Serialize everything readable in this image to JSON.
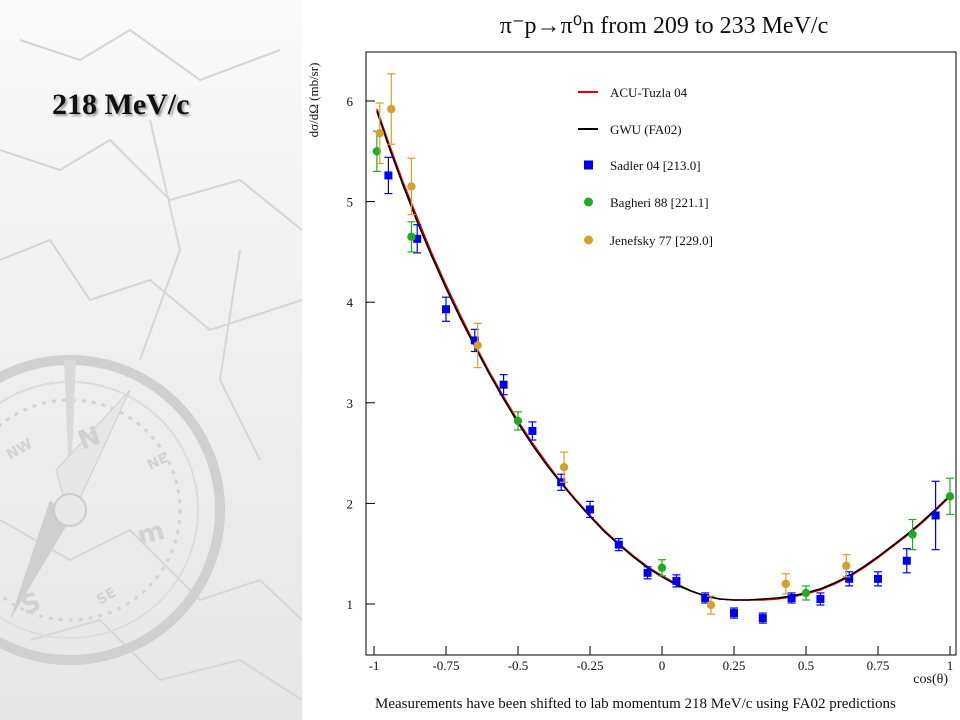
{
  "slide": {
    "title": "218 MeV/c",
    "footnote": "Measurements have been shifted to lab momentum 218 MeV/c using FA02 predictions"
  },
  "decor": {
    "icons": [
      "compass-rose-icon"
    ],
    "compass_letters": [
      "N",
      "NE",
      "NW",
      "S",
      "SE",
      "m"
    ]
  },
  "chart_data": {
    "type": "scatter",
    "title": "π⁻p→π⁰n from 209 to 233 MeV/c",
    "xlabel": "cos(θ)",
    "ylabel": "dσ/dΩ (mb/sr)",
    "xlim": [
      -1,
      1
    ],
    "ylim": [
      0.6,
      6.5
    ],
    "xticks": [
      -1,
      -0.75,
      -0.5,
      -0.25,
      0,
      0.25,
      0.5,
      0.75,
      1
    ],
    "xtick_labels": [
      "-1",
      "-0.75",
      "-0.5",
      "-0.25",
      "0",
      "0.25",
      "0.5",
      "0.75",
      "1"
    ],
    "yticks": [
      1,
      2,
      3,
      4,
      5,
      6
    ],
    "ytick_labels": [
      "1",
      "2",
      "3",
      "4",
      "5",
      "6"
    ],
    "grid": false,
    "legend": "top-right",
    "curves": [
      {
        "name": "ACU-Tuzla 04",
        "color": "#e00000",
        "x": [
          -0.99,
          -0.95,
          -0.9,
          -0.85,
          -0.8,
          -0.75,
          -0.7,
          -0.65,
          -0.6,
          -0.55,
          -0.5,
          -0.45,
          -0.4,
          -0.35,
          -0.3,
          -0.25,
          -0.2,
          -0.15,
          -0.1,
          -0.05,
          0,
          0.05,
          0.1,
          0.15,
          0.2,
          0.25,
          0.3,
          0.35,
          0.4,
          0.45,
          0.5,
          0.55,
          0.6,
          0.65,
          0.7,
          0.75,
          0.8,
          0.85,
          0.9,
          0.95,
          1.0
        ],
        "y": [
          5.92,
          5.59,
          5.2,
          4.84,
          4.49,
          4.17,
          3.87,
          3.58,
          3.31,
          3.06,
          2.82,
          2.6,
          2.4,
          2.21,
          2.04,
          1.88,
          1.73,
          1.6,
          1.48,
          1.37,
          1.28,
          1.2,
          1.13,
          1.08,
          1.05,
          1.04,
          1.04,
          1.04,
          1.05,
          1.07,
          1.1,
          1.14,
          1.2,
          1.27,
          1.36,
          1.46,
          1.57,
          1.68,
          1.8,
          1.93,
          2.07
        ]
      },
      {
        "name": "GWU (FA02)",
        "color": "#000000",
        "x": [
          -0.99,
          -0.95,
          -0.9,
          -0.85,
          -0.8,
          -0.75,
          -0.7,
          -0.65,
          -0.6,
          -0.55,
          -0.5,
          -0.45,
          -0.4,
          -0.35,
          -0.3,
          -0.25,
          -0.2,
          -0.15,
          -0.1,
          -0.05,
          0,
          0.05,
          0.1,
          0.15,
          0.2,
          0.25,
          0.3,
          0.35,
          0.4,
          0.45,
          0.5,
          0.55,
          0.6,
          0.65,
          0.7,
          0.75,
          0.8,
          0.85,
          0.9,
          0.95,
          1.0
        ],
        "y": [
          5.9,
          5.56,
          5.17,
          4.8,
          4.46,
          4.14,
          3.84,
          3.56,
          3.29,
          3.04,
          2.8,
          2.58,
          2.38,
          2.2,
          2.03,
          1.87,
          1.72,
          1.59,
          1.47,
          1.36,
          1.27,
          1.19,
          1.13,
          1.08,
          1.05,
          1.04,
          1.04,
          1.05,
          1.06,
          1.08,
          1.11,
          1.15,
          1.21,
          1.28,
          1.37,
          1.47,
          1.58,
          1.69,
          1.81,
          1.94,
          2.08
        ]
      }
    ],
    "series": [
      {
        "name": "Sadler 04  [213.0]",
        "marker": "square",
        "color": "#0000ee",
        "points": [
          {
            "x": -0.95,
            "y": 5.26,
            "err": 0.18
          },
          {
            "x": -0.85,
            "y": 4.63,
            "err": 0.14
          },
          {
            "x": -0.75,
            "y": 3.93,
            "err": 0.12
          },
          {
            "x": -0.65,
            "y": 3.62,
            "err": 0.11
          },
          {
            "x": -0.55,
            "y": 3.18,
            "err": 0.1
          },
          {
            "x": -0.45,
            "y": 2.72,
            "err": 0.09
          },
          {
            "x": -0.35,
            "y": 2.21,
            "err": 0.08
          },
          {
            "x": -0.25,
            "y": 1.94,
            "err": 0.08
          },
          {
            "x": -0.15,
            "y": 1.59,
            "err": 0.06
          },
          {
            "x": -0.05,
            "y": 1.31,
            "err": 0.06
          },
          {
            "x": 0.05,
            "y": 1.23,
            "err": 0.06
          },
          {
            "x": 0.15,
            "y": 1.06,
            "err": 0.05
          },
          {
            "x": 0.25,
            "y": 0.91,
            "err": 0.05
          },
          {
            "x": 0.35,
            "y": 0.86,
            "err": 0.05
          },
          {
            "x": 0.45,
            "y": 1.06,
            "err": 0.05
          },
          {
            "x": 0.55,
            "y": 1.05,
            "err": 0.06
          },
          {
            "x": 0.65,
            "y": 1.25,
            "err": 0.07
          },
          {
            "x": 0.75,
            "y": 1.25,
            "err": 0.07
          },
          {
            "x": 0.85,
            "y": 1.43,
            "err": 0.12
          },
          {
            "x": 0.95,
            "y": 1.88,
            "err": 0.34
          }
        ]
      },
      {
        "name": "Bagheri 88  [221.1]",
        "marker": "circle",
        "color": "#22aa22",
        "points": [
          {
            "x": -0.99,
            "y": 5.5,
            "err": 0.2
          },
          {
            "x": -0.87,
            "y": 4.65,
            "err": 0.15
          },
          {
            "x": -0.5,
            "y": 2.82,
            "err": 0.09
          },
          {
            "x": 0.0,
            "y": 1.36,
            "err": 0.08
          },
          {
            "x": 0.5,
            "y": 1.11,
            "err": 0.07
          },
          {
            "x": 0.87,
            "y": 1.69,
            "err": 0.15
          },
          {
            "x": 1.0,
            "y": 2.07,
            "err": 0.18
          }
        ]
      },
      {
        "name": "Jenefsky 77  [229.0]",
        "marker": "circle",
        "color": "#d4a22a",
        "points": [
          {
            "x": -0.98,
            "y": 5.68,
            "err": 0.3
          },
          {
            "x": -0.94,
            "y": 5.92,
            "err": 0.35
          },
          {
            "x": -0.87,
            "y": 5.15,
            "err": 0.28
          },
          {
            "x": -0.64,
            "y": 3.57,
            "err": 0.22
          },
          {
            "x": -0.34,
            "y": 2.36,
            "err": 0.15
          },
          {
            "x": 0.17,
            "y": 0.99,
            "err": 0.09
          },
          {
            "x": 0.43,
            "y": 1.2,
            "err": 0.1
          },
          {
            "x": 0.64,
            "y": 1.38,
            "err": 0.11
          }
        ]
      }
    ]
  }
}
